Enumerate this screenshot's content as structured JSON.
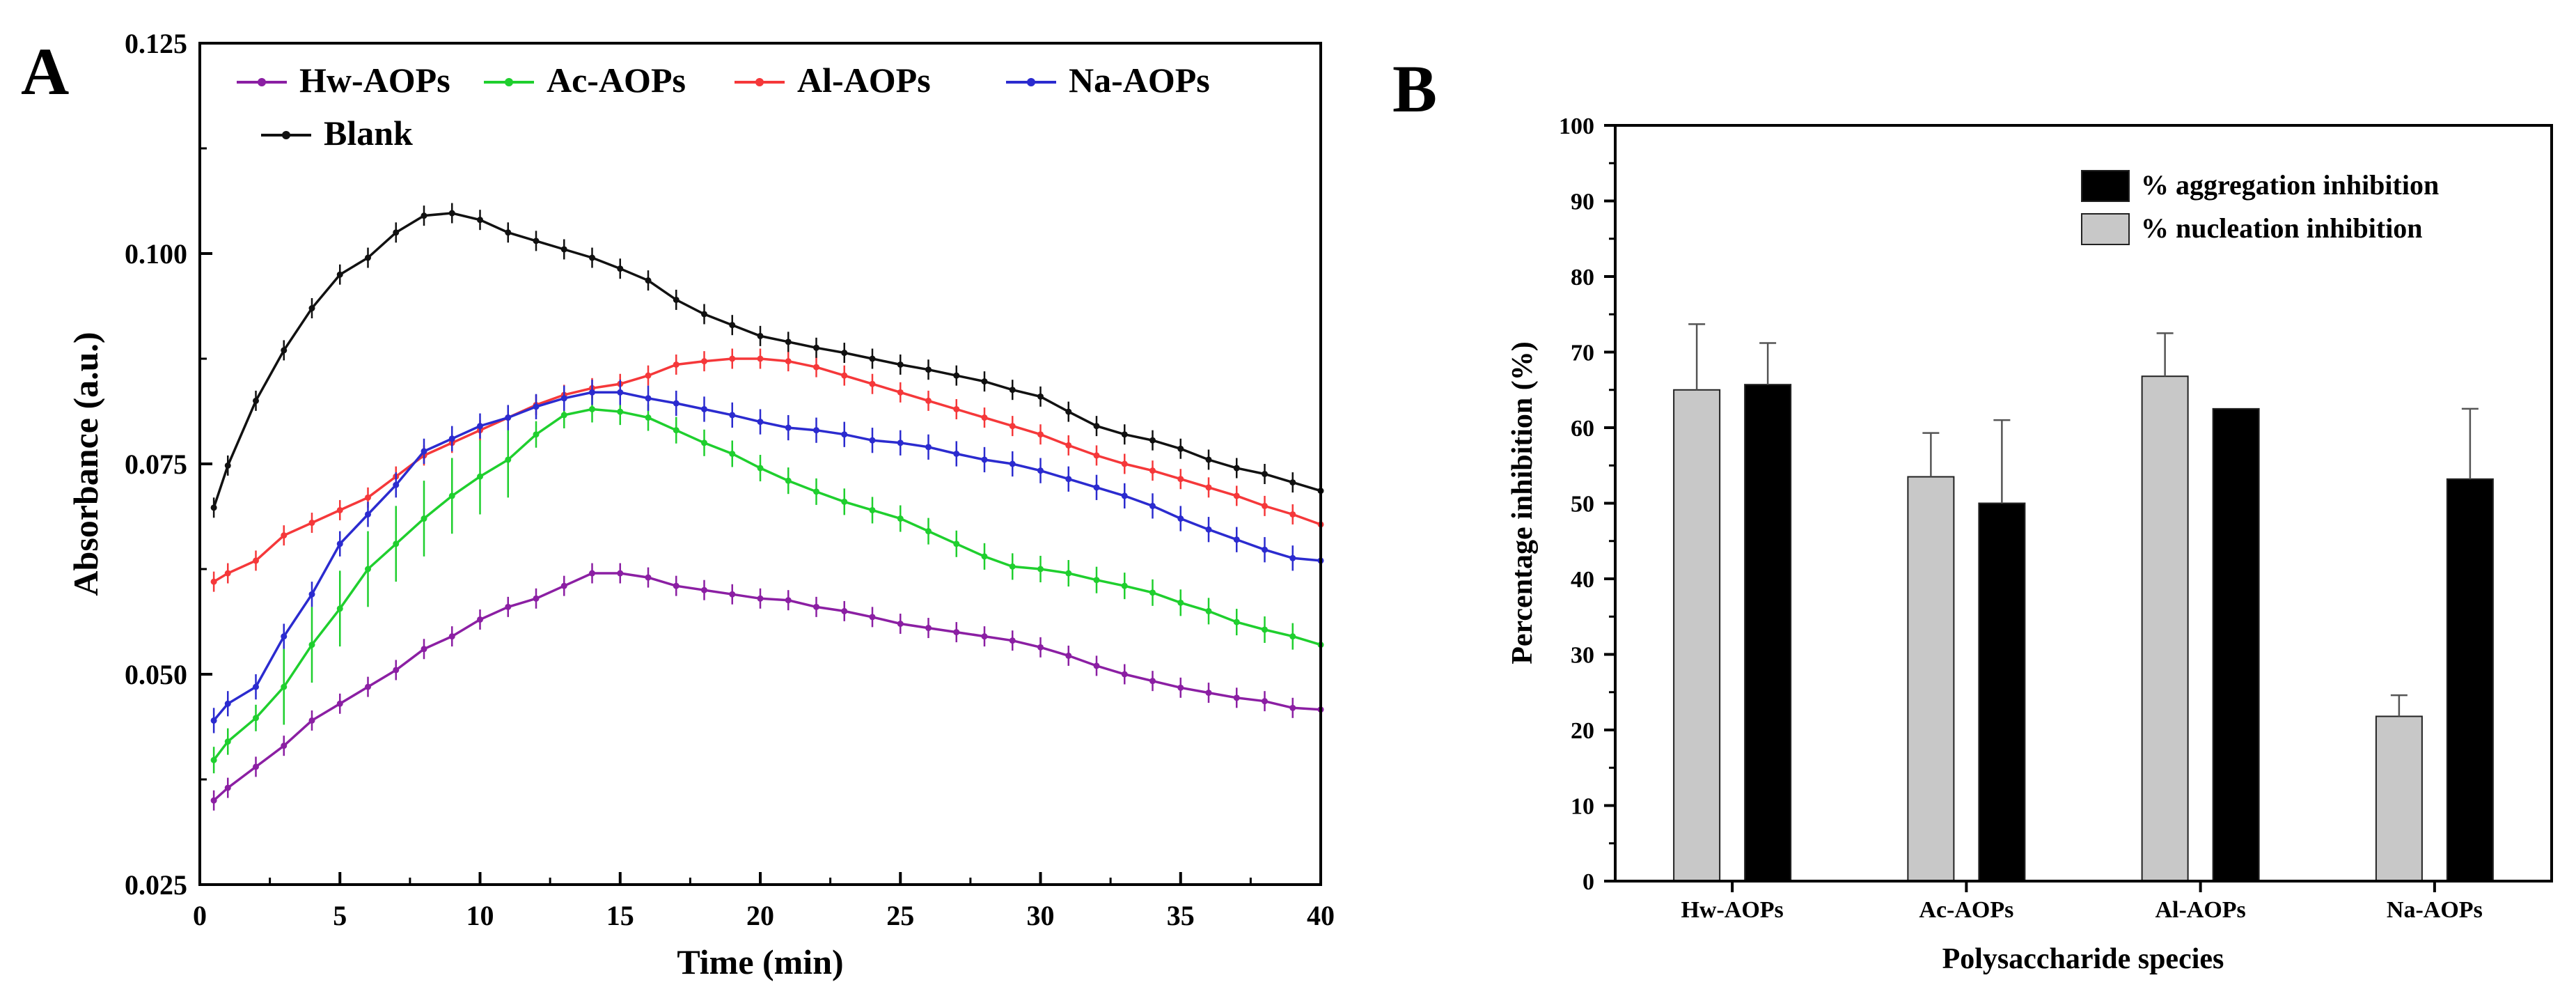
{
  "panels": {
    "a_letter": "A",
    "b_letter": "B"
  },
  "chart_data": [
    {
      "type": "line",
      "title": "",
      "xlabel": "Time (min)",
      "ylabel": "Absorbance (a.u.)",
      "xlim": [
        0,
        40
      ],
      "ylim": [
        0.025,
        0.125
      ],
      "xticks": [
        "0",
        "5",
        "10",
        "15",
        "20",
        "25",
        "30",
        "35",
        "40"
      ],
      "yticks": [
        "0.025",
        "0.050",
        "0.075",
        "0.100",
        "0.125"
      ],
      "legend_position": "top-left",
      "series": [
        {
          "name": "Hw-AOPs",
          "color": "#8b1fa3",
          "points": [
            [
              0.5,
              0.035
            ],
            [
              1,
              0.0365
            ],
            [
              2,
              0.039
            ],
            [
              3,
              0.0415
            ],
            [
              4,
              0.0445
            ],
            [
              5,
              0.0465
            ],
            [
              6,
              0.0485
            ],
            [
              7,
              0.0505
            ],
            [
              8,
              0.053
            ],
            [
              9,
              0.0545
            ],
            [
              10,
              0.0565
            ],
            [
              11,
              0.058
            ],
            [
              12,
              0.059
            ],
            [
              13,
              0.0605
            ],
            [
              14,
              0.062
            ],
            [
              15,
              0.062
            ],
            [
              16,
              0.0615
            ],
            [
              17,
              0.0605
            ],
            [
              18,
              0.06
            ],
            [
              19,
              0.0595
            ],
            [
              20,
              0.059
            ],
            [
              21,
              0.0588
            ],
            [
              22,
              0.058
            ],
            [
              23,
              0.0575
            ],
            [
              24,
              0.0568
            ],
            [
              25,
              0.056
            ],
            [
              26,
              0.0555
            ],
            [
              27,
              0.055
            ],
            [
              28,
              0.0545
            ],
            [
              29,
              0.054
            ],
            [
              30,
              0.0532
            ],
            [
              31,
              0.0522
            ],
            [
              32,
              0.051
            ],
            [
              33,
              0.05
            ],
            [
              34,
              0.0492
            ],
            [
              35,
              0.0484
            ],
            [
              36,
              0.0478
            ],
            [
              37,
              0.0472
            ],
            [
              38,
              0.0468
            ],
            [
              39,
              0.046
            ],
            [
              40,
              0.0458
            ]
          ],
          "error": 0.0012
        },
        {
          "name": "Ac-AOPs",
          "color": "#1fcf2e",
          "points": [
            [
              0.5,
              0.0398
            ],
            [
              1,
              0.042
            ],
            [
              2,
              0.0448
            ],
            [
              3,
              0.0485
            ],
            [
              4,
              0.0535
            ],
            [
              5,
              0.0578
            ],
            [
              6,
              0.0625
            ],
            [
              7,
              0.0655
            ],
            [
              8,
              0.0685
            ],
            [
              9,
              0.0712
            ],
            [
              10,
              0.0735
            ],
            [
              11,
              0.0755
            ],
            [
              12,
              0.0785
            ],
            [
              13,
              0.0808
            ],
            [
              14,
              0.0815
            ],
            [
              15,
              0.0812
            ],
            [
              16,
              0.0805
            ],
            [
              17,
              0.079
            ],
            [
              18,
              0.0775
            ],
            [
              19,
              0.0762
            ],
            [
              20,
              0.0745
            ],
            [
              21,
              0.073
            ],
            [
              22,
              0.0717
            ],
            [
              23,
              0.0705
            ],
            [
              24,
              0.0695
            ],
            [
              25,
              0.0685
            ],
            [
              26,
              0.067
            ],
            [
              27,
              0.0655
            ],
            [
              28,
              0.064
            ],
            [
              29,
              0.0628
            ],
            [
              30,
              0.0625
            ],
            [
              31,
              0.062
            ],
            [
              32,
              0.0612
            ],
            [
              33,
              0.0605
            ],
            [
              34,
              0.0597
            ],
            [
              35,
              0.0585
            ],
            [
              36,
              0.0575
            ],
            [
              37,
              0.0562
            ],
            [
              38,
              0.0553
            ],
            [
              39,
              0.0545
            ],
            [
              40,
              0.0535
            ]
          ],
          "error": 0.0045
        },
        {
          "name": "Al-AOPs",
          "color": "#f5383a",
          "points": [
            [
              0.5,
              0.061
            ],
            [
              1,
              0.062
            ],
            [
              2,
              0.0635
            ],
            [
              3,
              0.0665
            ],
            [
              4,
              0.068
            ],
            [
              5,
              0.0695
            ],
            [
              6,
              0.071
            ],
            [
              7,
              0.0735
            ],
            [
              8,
              0.076
            ],
            [
              9,
              0.0775
            ],
            [
              10,
              0.079
            ],
            [
              11,
              0.0805
            ],
            [
              12,
              0.082
            ],
            [
              13,
              0.0832
            ],
            [
              14,
              0.084
            ],
            [
              15,
              0.0845
            ],
            [
              16,
              0.0855
            ],
            [
              17,
              0.0868
            ],
            [
              18,
              0.0872
            ],
            [
              19,
              0.0875
            ],
            [
              20,
              0.0875
            ],
            [
              21,
              0.0872
            ],
            [
              22,
              0.0865
            ],
            [
              23,
              0.0855
            ],
            [
              24,
              0.0845
            ],
            [
              25,
              0.0835
            ],
            [
              26,
              0.0825
            ],
            [
              27,
              0.0815
            ],
            [
              28,
              0.0805
            ],
            [
              29,
              0.0795
            ],
            [
              30,
              0.0785
            ],
            [
              31,
              0.0772
            ],
            [
              32,
              0.076
            ],
            [
              33,
              0.075
            ],
            [
              34,
              0.0742
            ],
            [
              35,
              0.0732
            ],
            [
              36,
              0.0722
            ],
            [
              37,
              0.0712
            ],
            [
              38,
              0.07
            ],
            [
              39,
              0.069
            ],
            [
              40,
              0.0678
            ]
          ],
          "error": 0.0012
        },
        {
          "name": "Na-AOPs",
          "color": "#2b2bcf",
          "points": [
            [
              0.5,
              0.0445
            ],
            [
              1,
              0.0465
            ],
            [
              2,
              0.0485
            ],
            [
              3,
              0.0545
            ],
            [
              4,
              0.0595
            ],
            [
              5,
              0.0655
            ],
            [
              6,
              0.069
            ],
            [
              7,
              0.0725
            ],
            [
              8,
              0.0765
            ],
            [
              9,
              0.078
            ],
            [
              10,
              0.0795
            ],
            [
              11,
              0.0805
            ],
            [
              12,
              0.0818
            ],
            [
              13,
              0.0828
            ],
            [
              14,
              0.0835
            ],
            [
              15,
              0.0835
            ],
            [
              16,
              0.0828
            ],
            [
              17,
              0.0822
            ],
            [
              18,
              0.0815
            ],
            [
              19,
              0.0808
            ],
            [
              20,
              0.08
            ],
            [
              21,
              0.0793
            ],
            [
              22,
              0.079
            ],
            [
              23,
              0.0785
            ],
            [
              24,
              0.0778
            ],
            [
              25,
              0.0775
            ],
            [
              26,
              0.077
            ],
            [
              27,
              0.0762
            ],
            [
              28,
              0.0755
            ],
            [
              29,
              0.075
            ],
            [
              30,
              0.0742
            ],
            [
              31,
              0.0732
            ],
            [
              32,
              0.0722
            ],
            [
              33,
              0.0712
            ],
            [
              34,
              0.07
            ],
            [
              35,
              0.0685
            ],
            [
              36,
              0.0672
            ],
            [
              37,
              0.066
            ],
            [
              38,
              0.0648
            ],
            [
              39,
              0.0638
            ],
            [
              40,
              0.0635
            ]
          ],
          "error": 0.0015
        },
        {
          "name": "Blank",
          "color": "#111111",
          "points": [
            [
              0.5,
              0.0698
            ],
            [
              1,
              0.0748
            ],
            [
              2,
              0.0825
            ],
            [
              3,
              0.0885
            ],
            [
              4,
              0.0935
            ],
            [
              5,
              0.0975
            ],
            [
              6,
              0.0995
            ],
            [
              7,
              0.1025
            ],
            [
              8,
              0.1045
            ],
            [
              9,
              0.1048
            ],
            [
              10,
              0.104
            ],
            [
              11,
              0.1025
            ],
            [
              12,
              0.1015
            ],
            [
              13,
              0.1005
            ],
            [
              14,
              0.0995
            ],
            [
              15,
              0.0982
            ],
            [
              16,
              0.0968
            ],
            [
              17,
              0.0945
            ],
            [
              18,
              0.0928
            ],
            [
              19,
              0.0915
            ],
            [
              20,
              0.0902
            ],
            [
              21,
              0.0895
            ],
            [
              22,
              0.0888
            ],
            [
              23,
              0.0882
            ],
            [
              24,
              0.0875
            ],
            [
              25,
              0.0868
            ],
            [
              26,
              0.0862
            ],
            [
              27,
              0.0855
            ],
            [
              28,
              0.0848
            ],
            [
              29,
              0.0838
            ],
            [
              30,
              0.083
            ],
            [
              31,
              0.0812
            ],
            [
              32,
              0.0795
            ],
            [
              33,
              0.0785
            ],
            [
              34,
              0.0778
            ],
            [
              35,
              0.0768
            ],
            [
              36,
              0.0755
            ],
            [
              37,
              0.0745
            ],
            [
              38,
              0.0738
            ],
            [
              39,
              0.0728
            ],
            [
              40,
              0.0718
            ]
          ],
          "error": 0.0012
        }
      ]
    },
    {
      "type": "bar",
      "title": "",
      "xlabel": "Polysaccharide species",
      "ylabel": "Percentage inhibition (%)",
      "ylim": [
        0,
        100
      ],
      "yticks": [
        "0",
        "10",
        "20",
        "30",
        "40",
        "50",
        "60",
        "70",
        "80",
        "90",
        "100"
      ],
      "categories": [
        "Hw-AOPs",
        "Ac-AOPs",
        "Al-AOPs",
        "Na-AOPs"
      ],
      "legend_position": "top-right",
      "series": [
        {
          "name": "% nucleation inhibition",
          "color": "#c8c8c8",
          "values": [
            65,
            53.5,
            66.8,
            21.8
          ],
          "errors": [
            8.7,
            5.8,
            5.7,
            2.8
          ]
        },
        {
          "name": "% aggregation inhibition",
          "color": "#000000",
          "values": [
            65.7,
            50,
            62.5,
            53.2
          ],
          "errors": [
            5.5,
            11,
            0,
            9.3
          ]
        }
      ],
      "legend_order": [
        "% aggregation inhibition",
        "% nucleation inhibition"
      ]
    }
  ]
}
